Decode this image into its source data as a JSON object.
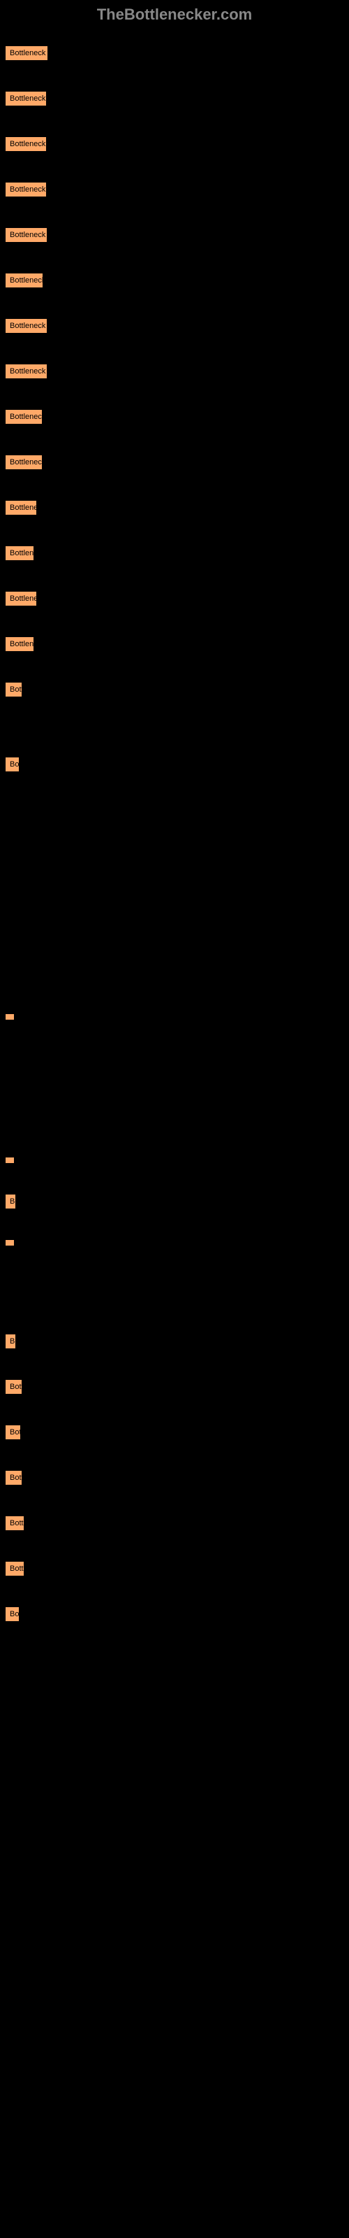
{
  "header": {
    "title": "TheBottlenecker.com"
  },
  "items": [
    {
      "label": "Bottleneck res",
      "width": 64
    },
    {
      "label": "Bottleneck re",
      "width": 62
    },
    {
      "label": "Bottleneck re",
      "width": 62
    },
    {
      "label": "Bottleneck re",
      "width": 62
    },
    {
      "label": "Bottleneck re",
      "width": 63
    },
    {
      "label": "Bottleneck r",
      "width": 57
    },
    {
      "label": "Bottleneck re",
      "width": 63
    },
    {
      "label": "Bottleneck re",
      "width": 63
    },
    {
      "label": "Bottleneck r",
      "width": 56
    },
    {
      "label": "Bottleneck r",
      "width": 56
    },
    {
      "label": "Bottleneck",
      "width": 48
    },
    {
      "label": "Bottlenec",
      "width": 44
    },
    {
      "label": "Bottleneck",
      "width": 48
    },
    {
      "label": "Bottlenec",
      "width": 44
    },
    {
      "label": "Bottl",
      "width": 27
    },
    {
      "label": "Bot",
      "width": 23
    },
    {
      "label": "",
      "width": 4
    },
    {
      "label": "",
      "width": 4
    },
    {
      "label": "Bo",
      "width": 18
    },
    {
      "label": "",
      "width": 4
    },
    {
      "label": "Bo",
      "width": 18
    },
    {
      "label": "Bottl",
      "width": 27
    },
    {
      "label": "Bott",
      "width": 25
    },
    {
      "label": "Bottl",
      "width": 27
    },
    {
      "label": "Bottle",
      "width": 30
    },
    {
      "label": "Bottle",
      "width": 30
    },
    {
      "label": "Bot",
      "width": 23
    }
  ],
  "spacings": [
    18,
    18,
    18,
    18,
    18,
    18,
    18,
    18,
    18,
    18,
    18,
    18,
    18,
    18,
    18,
    60,
    320,
    170,
    18,
    18,
    100,
    18,
    18,
    18,
    18,
    18,
    18
  ],
  "colors": {
    "item_bg": "#ffa968",
    "border": "#000000",
    "text": "#000000",
    "header_text": "#888888",
    "page_bg": "#000000"
  }
}
